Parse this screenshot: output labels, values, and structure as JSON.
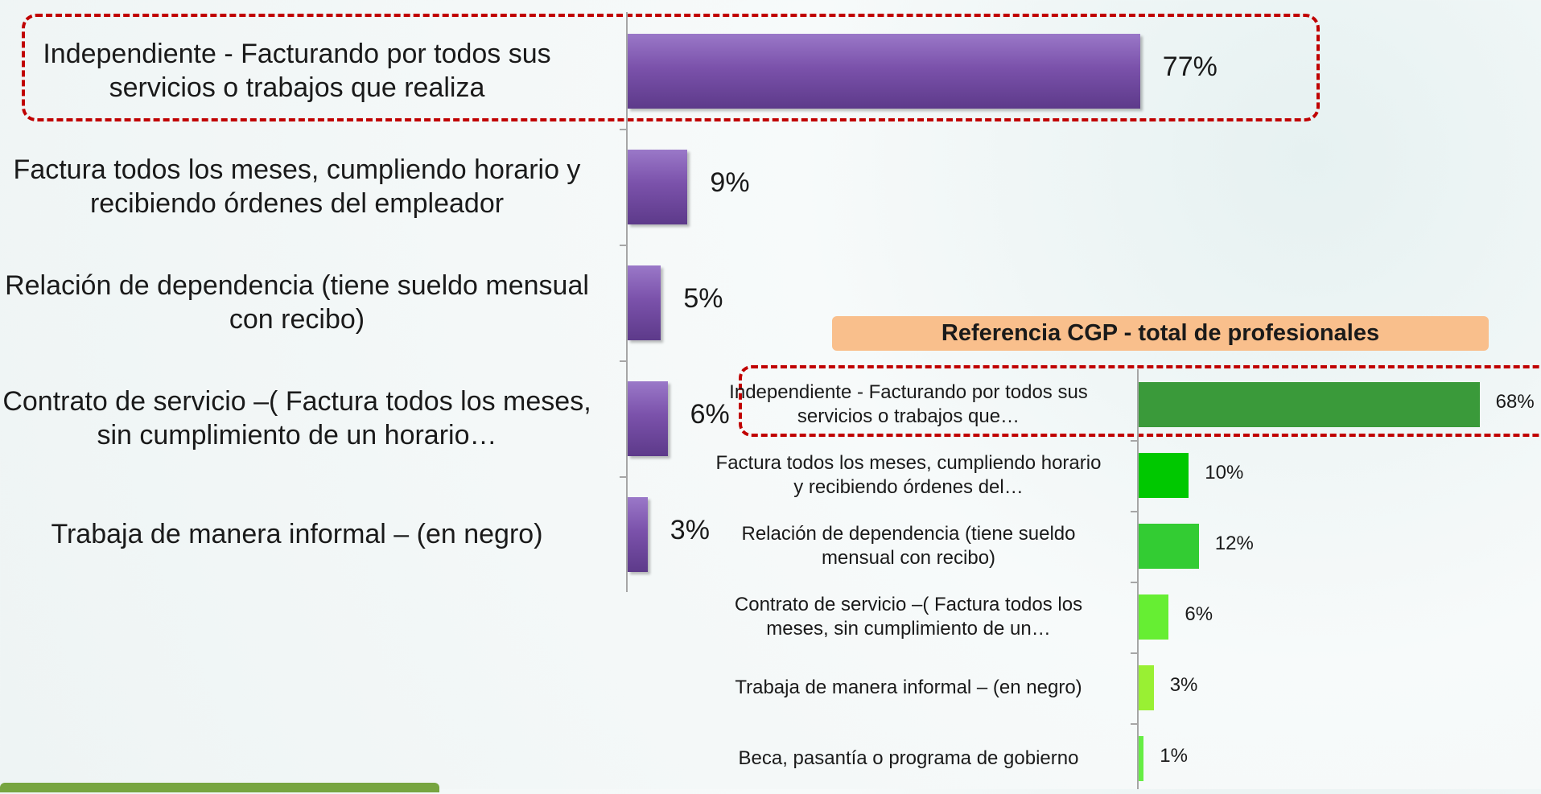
{
  "chart_data": [
    {
      "type": "bar",
      "orientation": "horizontal",
      "categories": [
        "Independiente -  Facturando por todos sus servicios o trabajos que realiza",
        "Factura todos los meses, cumpliendo horario y recibiendo órdenes del empleador",
        "Relación de dependencia (tiene sueldo mensual con recibo)",
        "Contrato de servicio –( Factura todos los meses, sin cumplimiento de un horario…",
        "Trabaja de manera informal – (en negro)"
      ],
      "values": [
        77,
        9,
        5,
        6,
        3
      ],
      "value_labels": [
        "77%",
        "9%",
        "5%",
        "6%",
        "3%"
      ],
      "color": "#7b52ab"
    },
    {
      "type": "bar",
      "orientation": "horizontal",
      "title": "Referencia CGP - total de profesionales",
      "categories": [
        "Independiente -  Facturando  por todos sus servicios o trabajos que…",
        "Factura todos los meses, cumpliendo horario y recibiendo órdenes del…",
        "Relación de dependencia (tiene sueldo mensual con recibo)",
        "Contrato de servicio –( Factura todos los meses, sin cumplimiento de un…",
        "Trabaja de manera informal – (en negro)",
        "Beca, pasantía o programa de gobierno"
      ],
      "values": [
        68,
        10,
        12,
        6,
        3,
        1
      ],
      "value_labels": [
        "68%",
        "10%",
        "12%",
        "6%",
        "3%",
        "1%"
      ],
      "colors": [
        "#3a9a3a",
        "#00c800",
        "#33cc33",
        "#66ee33",
        "#99f033",
        "#66ee44"
      ]
    }
  ]
}
